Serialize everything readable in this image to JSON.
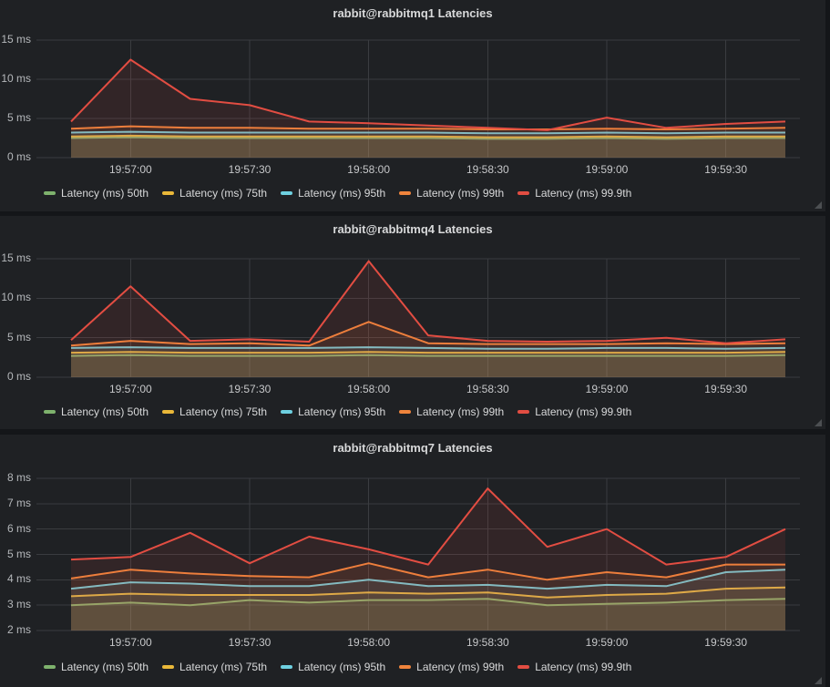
{
  "theme": {
    "page_background": "#141619",
    "panel_background": "#1f2124",
    "grid_color": "#3a3c40",
    "title_color": "#d8d9da",
    "tick_color": "#c6c7c9"
  },
  "chart_data": [
    {
      "type": "area",
      "title": "rabbit@rabbitmq1 Latencies",
      "x": [
        "19:56:45",
        "19:57:00",
        "19:57:15",
        "19:57:30",
        "19:57:45",
        "19:58:00",
        "19:58:15",
        "19:58:30",
        "19:58:45",
        "19:59:00",
        "19:59:15",
        "19:59:30",
        "19:59:45"
      ],
      "x_tick_labels": [
        "19:57:00",
        "19:57:30",
        "19:58:00",
        "19:58:30",
        "19:59:00",
        "19:59:30"
      ],
      "y_ticks": {
        "labels": [
          "0 ms",
          "5 ms",
          "10 ms",
          "15 ms"
        ],
        "values": [
          0,
          5,
          10,
          15
        ]
      },
      "ylim": [
        0,
        15
      ],
      "grid": true,
      "legend_position": "bottom-left",
      "fill_opacity": 0.1,
      "series": [
        {
          "name": "Latency (ms) 50th",
          "color": "#7EB26D",
          "values": [
            2.5,
            2.6,
            2.5,
            2.5,
            2.5,
            2.5,
            2.5,
            2.4,
            2.4,
            2.5,
            2.4,
            2.5,
            2.5
          ]
        },
        {
          "name": "Latency (ms) 75th",
          "color": "#EAB839",
          "values": [
            2.7,
            2.8,
            2.7,
            2.7,
            2.7,
            2.7,
            2.7,
            2.6,
            2.6,
            2.7,
            2.6,
            2.7,
            2.7
          ]
        },
        {
          "name": "Latency (ms) 95th",
          "color": "#6ED0E0",
          "values": [
            3.2,
            3.3,
            3.2,
            3.2,
            3.2,
            3.2,
            3.2,
            3.1,
            3.1,
            3.2,
            3.1,
            3.2,
            3.2
          ]
        },
        {
          "name": "Latency (ms) 99th",
          "color": "#EF843C",
          "values": [
            3.7,
            4.0,
            3.8,
            3.8,
            3.7,
            3.7,
            3.7,
            3.6,
            3.6,
            3.7,
            3.6,
            3.7,
            3.8
          ]
        },
        {
          "name": "Latency (ms) 99.9th",
          "color": "#E24D42",
          "values": [
            4.6,
            12.5,
            7.5,
            6.7,
            4.6,
            4.4,
            4.1,
            3.8,
            3.5,
            5.1,
            3.8,
            4.3,
            4.6
          ]
        }
      ]
    },
    {
      "type": "area",
      "title": "rabbit@rabbitmq4 Latencies",
      "x": [
        "19:56:45",
        "19:57:00",
        "19:57:15",
        "19:57:30",
        "19:57:45",
        "19:58:00",
        "19:58:15",
        "19:58:30",
        "19:58:45",
        "19:59:00",
        "19:59:15",
        "19:59:30",
        "19:59:45"
      ],
      "x_tick_labels": [
        "19:57:00",
        "19:57:30",
        "19:58:00",
        "19:58:30",
        "19:59:00",
        "19:59:30"
      ],
      "y_ticks": {
        "labels": [
          "0 ms",
          "5 ms",
          "10 ms",
          "15 ms"
        ],
        "values": [
          0,
          5,
          10,
          15
        ]
      },
      "ylim": [
        0,
        15
      ],
      "grid": true,
      "legend_position": "bottom-left",
      "fill_opacity": 0.1,
      "series": [
        {
          "name": "Latency (ms) 50th",
          "color": "#7EB26D",
          "values": [
            2.7,
            2.8,
            2.7,
            2.7,
            2.7,
            2.8,
            2.7,
            2.7,
            2.7,
            2.7,
            2.7,
            2.7,
            2.8
          ]
        },
        {
          "name": "Latency (ms) 75th",
          "color": "#EAB839",
          "values": [
            3.1,
            3.2,
            3.1,
            3.1,
            3.1,
            3.2,
            3.1,
            3.1,
            3.1,
            3.1,
            3.1,
            3.1,
            3.2
          ]
        },
        {
          "name": "Latency (ms) 95th",
          "color": "#6ED0E0",
          "values": [
            3.7,
            3.8,
            3.7,
            3.7,
            3.7,
            3.8,
            3.7,
            3.6,
            3.6,
            3.7,
            3.7,
            3.6,
            3.7
          ]
        },
        {
          "name": "Latency (ms) 99th",
          "color": "#EF843C",
          "values": [
            4.0,
            4.6,
            4.2,
            4.3,
            4.0,
            7.0,
            4.3,
            4.2,
            4.2,
            4.2,
            4.3,
            4.2,
            4.3
          ]
        },
        {
          "name": "Latency (ms) 99.9th",
          "color": "#E24D42",
          "values": [
            4.7,
            11.5,
            4.6,
            4.8,
            4.5,
            14.7,
            5.3,
            4.6,
            4.5,
            4.6,
            5.0,
            4.3,
            4.8
          ]
        }
      ]
    },
    {
      "type": "area",
      "title": "rabbit@rabbitmq7 Latencies",
      "x": [
        "19:56:45",
        "19:57:00",
        "19:57:15",
        "19:57:30",
        "19:57:45",
        "19:58:00",
        "19:58:15",
        "19:58:30",
        "19:58:45",
        "19:59:00",
        "19:59:15",
        "19:59:30",
        "19:59:45"
      ],
      "x_tick_labels": [
        "19:57:00",
        "19:57:30",
        "19:58:00",
        "19:58:30",
        "19:59:00",
        "19:59:30"
      ],
      "y_ticks": {
        "labels": [
          "2 ms",
          "3 ms",
          "4 ms",
          "5 ms",
          "6 ms",
          "7 ms",
          "8 ms"
        ],
        "values": [
          2,
          3,
          4,
          5,
          6,
          7,
          8
        ]
      },
      "ylim": [
        2,
        8
      ],
      "grid": true,
      "legend_position": "bottom-left",
      "fill_opacity": 0.1,
      "series": [
        {
          "name": "Latency (ms) 50th",
          "color": "#7EB26D",
          "values": [
            3.0,
            3.1,
            3.0,
            3.2,
            3.1,
            3.2,
            3.2,
            3.25,
            3.0,
            3.05,
            3.1,
            3.2,
            3.25
          ]
        },
        {
          "name": "Latency (ms) 75th",
          "color": "#EAB839",
          "values": [
            3.35,
            3.45,
            3.4,
            3.4,
            3.4,
            3.5,
            3.45,
            3.5,
            3.3,
            3.4,
            3.45,
            3.65,
            3.7
          ]
        },
        {
          "name": "Latency (ms) 95th",
          "color": "#6ED0E0",
          "values": [
            3.65,
            3.9,
            3.85,
            3.75,
            3.75,
            4.0,
            3.75,
            3.8,
            3.65,
            3.8,
            3.75,
            4.3,
            4.4
          ]
        },
        {
          "name": "Latency (ms) 99th",
          "color": "#EF843C",
          "values": [
            4.05,
            4.4,
            4.25,
            4.15,
            4.1,
            4.65,
            4.1,
            4.4,
            4.0,
            4.3,
            4.1,
            4.6,
            4.6
          ]
        },
        {
          "name": "Latency (ms) 99.9th",
          "color": "#E24D42",
          "values": [
            4.8,
            4.9,
            5.85,
            4.65,
            5.7,
            5.2,
            4.6,
            7.6,
            5.3,
            6.0,
            4.6,
            4.9,
            6.0
          ]
        }
      ]
    }
  ]
}
